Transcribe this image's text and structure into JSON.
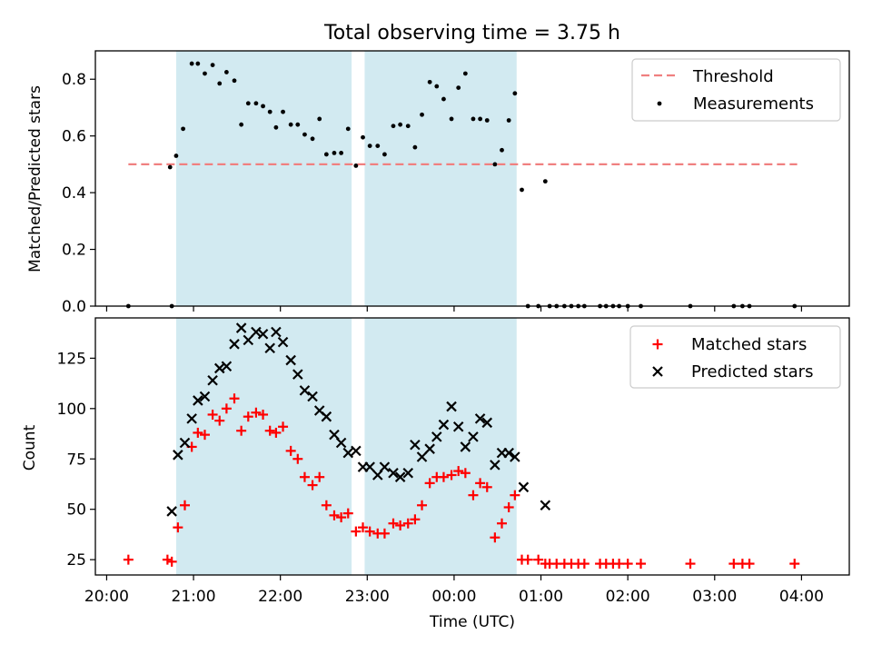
{
  "chart_data": [
    {
      "type": "scatter",
      "title": "Total observing time = 3.75 h",
      "ylabel": "Matched/Predicted stars",
      "xlabel": "",
      "xlim": [
        19.87,
        28.55
      ],
      "ylim": [
        0,
        0.9
      ],
      "y_ticks": [
        0.0,
        0.2,
        0.4,
        0.6,
        0.8
      ],
      "x_ticks": [
        20,
        21,
        22,
        23,
        24,
        25,
        26,
        27,
        28
      ],
      "x_tick_labels": [
        "20:00",
        "21:00",
        "22:00",
        "23:00",
        "00:00",
        "01:00",
        "02:00",
        "03:00",
        "04:00"
      ],
      "shaded_intervals": [
        [
          20.8,
          22.82
        ],
        [
          22.97,
          24.72
        ]
      ],
      "shade_color": "#add8e6",
      "legend_placement": "top-right",
      "threshold": {
        "name": "Threshold",
        "value": 0.5,
        "x_range": [
          20.25,
          27.95
        ],
        "color": "#f08080"
      },
      "series": [
        {
          "name": "Measurements",
          "color": "#000000",
          "points": [
            [
              20.25,
              0.0
            ],
            [
              20.75,
              0.0
            ],
            [
              20.73,
              0.49
            ],
            [
              20.8,
              0.53
            ],
            [
              20.88,
              0.625
            ],
            [
              20.98,
              0.855
            ],
            [
              21.05,
              0.855
            ],
            [
              21.13,
              0.82
            ],
            [
              21.22,
              0.85
            ],
            [
              21.3,
              0.785
            ],
            [
              21.38,
              0.825
            ],
            [
              21.47,
              0.795
            ],
            [
              21.55,
              0.64
            ],
            [
              21.63,
              0.715
            ],
            [
              21.72,
              0.715
            ],
            [
              21.8,
              0.705
            ],
            [
              21.88,
              0.685
            ],
            [
              21.95,
              0.63
            ],
            [
              22.03,
              0.685
            ],
            [
              22.12,
              0.64
            ],
            [
              22.2,
              0.64
            ],
            [
              22.28,
              0.605
            ],
            [
              22.37,
              0.59
            ],
            [
              22.45,
              0.66
            ],
            [
              22.53,
              0.535
            ],
            [
              22.62,
              0.54
            ],
            [
              22.7,
              0.54
            ],
            [
              22.78,
              0.625
            ],
            [
              22.87,
              0.495
            ],
            [
              22.95,
              0.595
            ],
            [
              23.03,
              0.565
            ],
            [
              23.12,
              0.565
            ],
            [
              23.2,
              0.535
            ],
            [
              23.3,
              0.635
            ],
            [
              23.38,
              0.64
            ],
            [
              23.47,
              0.635
            ],
            [
              23.55,
              0.56
            ],
            [
              23.63,
              0.675
            ],
            [
              23.72,
              0.79
            ],
            [
              23.8,
              0.775
            ],
            [
              23.88,
              0.73
            ],
            [
              23.97,
              0.66
            ],
            [
              24.05,
              0.77
            ],
            [
              24.13,
              0.82
            ],
            [
              24.22,
              0.66
            ],
            [
              24.3,
              0.66
            ],
            [
              24.38,
              0.655
            ],
            [
              24.47,
              0.5
            ],
            [
              24.55,
              0.55
            ],
            [
              24.63,
              0.655
            ],
            [
              24.7,
              0.75
            ],
            [
              24.78,
              0.41
            ],
            [
              24.85,
              0.0
            ],
            [
              24.97,
              0.0
            ],
            [
              25.05,
              0.44
            ],
            [
              25.1,
              0.0
            ],
            [
              25.18,
              0.0
            ],
            [
              25.27,
              0.0
            ],
            [
              25.35,
              0.0
            ],
            [
              25.43,
              0.0
            ],
            [
              25.5,
              0.0
            ],
            [
              25.68,
              0.0
            ],
            [
              25.75,
              0.0
            ],
            [
              25.83,
              0.0
            ],
            [
              25.9,
              0.0
            ],
            [
              26.0,
              0.0
            ],
            [
              26.15,
              0.0
            ],
            [
              26.72,
              0.0
            ],
            [
              27.22,
              0.0
            ],
            [
              27.32,
              0.0
            ],
            [
              27.4,
              0.0
            ],
            [
              27.92,
              0.0
            ]
          ]
        }
      ]
    },
    {
      "type": "scatter",
      "title": "",
      "xlabel": "Time (UTC)",
      "ylabel": "Count",
      "xlim": [
        19.87,
        28.55
      ],
      "ylim": [
        17.4,
        145
      ],
      "y_ticks": [
        25,
        50,
        75,
        100,
        125
      ],
      "x_ticks": [
        20,
        21,
        22,
        23,
        24,
        25,
        26,
        27,
        28
      ],
      "x_tick_labels": [
        "20:00",
        "21:00",
        "22:00",
        "23:00",
        "00:00",
        "01:00",
        "02:00",
        "03:00",
        "04:00"
      ],
      "shaded_intervals": [
        [
          20.8,
          22.82
        ],
        [
          22.97,
          24.72
        ]
      ],
      "shade_color": "#add8e6",
      "legend_placement": "top-right",
      "series": [
        {
          "name": "Matched stars",
          "marker": "plus",
          "color": "#ff0000",
          "points": [
            [
              20.25,
              25
            ],
            [
              20.7,
              25
            ],
            [
              20.75,
              24
            ],
            [
              20.82,
              41
            ],
            [
              20.9,
              52
            ],
            [
              20.98,
              81
            ],
            [
              21.05,
              88
            ],
            [
              21.13,
              87
            ],
            [
              21.22,
              97
            ],
            [
              21.3,
              94
            ],
            [
              21.38,
              100
            ],
            [
              21.47,
              105
            ],
            [
              21.55,
              89
            ],
            [
              21.63,
              96
            ],
            [
              21.72,
              98
            ],
            [
              21.8,
              97
            ],
            [
              21.88,
              89
            ],
            [
              21.95,
              88
            ],
            [
              22.03,
              91
            ],
            [
              22.12,
              79
            ],
            [
              22.2,
              75
            ],
            [
              22.28,
              66
            ],
            [
              22.37,
              62
            ],
            [
              22.45,
              66
            ],
            [
              22.53,
              52
            ],
            [
              22.62,
              47
            ],
            [
              22.7,
              46
            ],
            [
              22.78,
              48
            ],
            [
              22.87,
              39
            ],
            [
              22.95,
              41
            ],
            [
              23.03,
              39
            ],
            [
              23.12,
              38
            ],
            [
              23.2,
              38
            ],
            [
              23.3,
              43
            ],
            [
              23.38,
              42
            ],
            [
              23.47,
              43
            ],
            [
              23.55,
              45
            ],
            [
              23.63,
              52
            ],
            [
              23.72,
              63
            ],
            [
              23.8,
              66
            ],
            [
              23.88,
              66
            ],
            [
              23.97,
              67
            ],
            [
              24.05,
              69
            ],
            [
              24.13,
              68
            ],
            [
              24.22,
              57
            ],
            [
              24.3,
              63
            ],
            [
              24.38,
              61
            ],
            [
              24.47,
              36
            ],
            [
              24.55,
              43
            ],
            [
              24.63,
              51
            ],
            [
              24.7,
              57
            ],
            [
              24.78,
              25
            ],
            [
              24.85,
              25
            ],
            [
              24.97,
              25
            ],
            [
              25.05,
              23
            ],
            [
              25.1,
              23
            ],
            [
              25.18,
              23
            ],
            [
              25.27,
              23
            ],
            [
              25.35,
              23
            ],
            [
              25.43,
              23
            ],
            [
              25.5,
              23
            ],
            [
              25.68,
              23
            ],
            [
              25.75,
              23
            ],
            [
              25.83,
              23
            ],
            [
              25.9,
              23
            ],
            [
              26.0,
              23
            ],
            [
              26.15,
              23
            ],
            [
              26.72,
              23
            ],
            [
              27.22,
              23
            ],
            [
              27.32,
              23
            ],
            [
              27.4,
              23
            ],
            [
              27.92,
              23
            ]
          ]
        },
        {
          "name": "Predicted stars",
          "marker": "x",
          "color": "#000000",
          "points": [
            [
              20.75,
              49
            ],
            [
              20.82,
              77
            ],
            [
              20.9,
              83
            ],
            [
              20.98,
              95
            ],
            [
              21.05,
              104
            ],
            [
              21.13,
              106
            ],
            [
              21.22,
              114
            ],
            [
              21.3,
              120
            ],
            [
              21.38,
              121
            ],
            [
              21.47,
              132
            ],
            [
              21.55,
              140
            ],
            [
              21.63,
              134
            ],
            [
              21.72,
              138
            ],
            [
              21.8,
              137
            ],
            [
              21.88,
              130
            ],
            [
              21.95,
              138
            ],
            [
              22.03,
              133
            ],
            [
              22.12,
              124
            ],
            [
              22.2,
              117
            ],
            [
              22.28,
              109
            ],
            [
              22.37,
              106
            ],
            [
              22.45,
              99
            ],
            [
              22.53,
              96
            ],
            [
              22.62,
              87
            ],
            [
              22.7,
              83
            ],
            [
              22.78,
              78
            ],
            [
              22.87,
              79
            ],
            [
              22.95,
              71
            ],
            [
              23.03,
              71
            ],
            [
              23.12,
              67
            ],
            [
              23.2,
              71
            ],
            [
              23.3,
              68
            ],
            [
              23.38,
              66
            ],
            [
              23.47,
              68
            ],
            [
              23.55,
              82
            ],
            [
              23.63,
              76
            ],
            [
              23.72,
              80
            ],
            [
              23.8,
              86
            ],
            [
              23.88,
              92
            ],
            [
              23.97,
              101
            ],
            [
              24.05,
              91
            ],
            [
              24.13,
              81
            ],
            [
              24.22,
              86
            ],
            [
              24.3,
              95
            ],
            [
              24.38,
              93
            ],
            [
              24.47,
              72
            ],
            [
              24.55,
              78
            ],
            [
              24.63,
              78
            ],
            [
              24.7,
              76
            ],
            [
              24.8,
              61
            ],
            [
              25.05,
              52
            ]
          ]
        }
      ]
    }
  ]
}
